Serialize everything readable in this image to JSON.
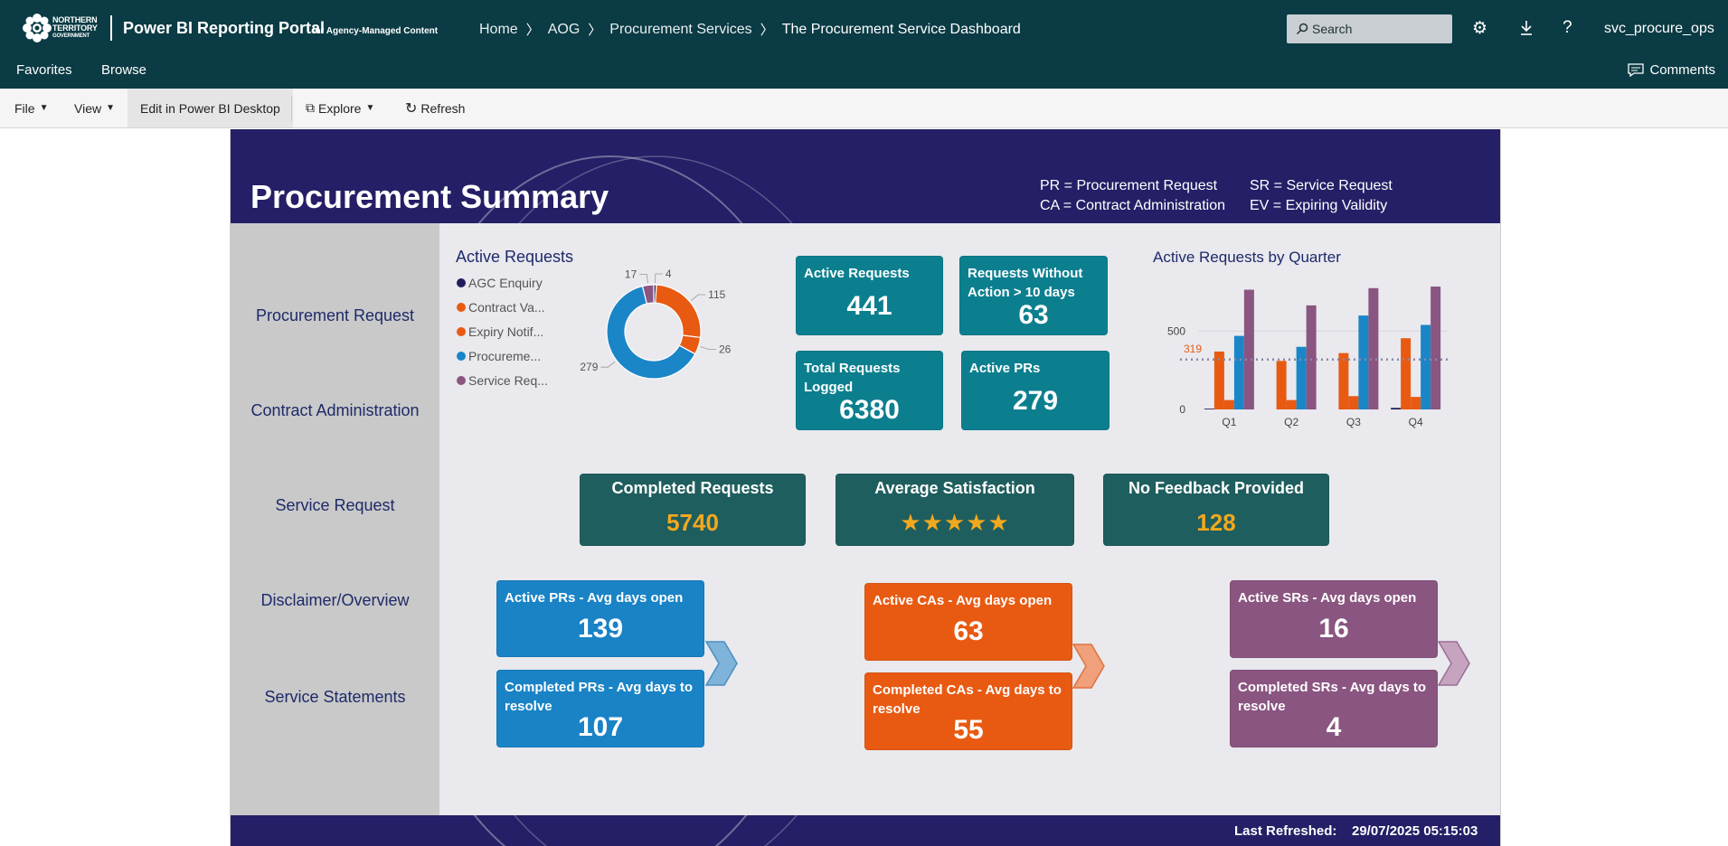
{
  "header": {
    "logo_text": [
      "NORTHERN",
      "TERRITORY",
      "GOVERNMENT"
    ],
    "portal_title": "Power BI Reporting Portal",
    "portal_subtitle": "for Agency-Managed Content",
    "breadcrumb": [
      "Home",
      "AOG",
      "Procurement Services",
      "The Procurement Service Dashboard"
    ],
    "search_placeholder": "Search",
    "username": "svc_procure_ops"
  },
  "nav": {
    "favorites": "Favorites",
    "browse": "Browse",
    "comments": "Comments"
  },
  "toolbar": {
    "file": "File",
    "view": "View",
    "edit": "Edit in Power BI Desktop",
    "explore": "Explore",
    "refresh": "Refresh"
  },
  "report": {
    "title": "Procurement Summary",
    "legend": {
      "pr": "PR = Procurement Request",
      "ca": "CA = Contract Administration",
      "sr": "SR = Service Request",
      "ev": "EV = Expiring Validity"
    },
    "leftnav": [
      "Procurement Request",
      "Contract Administration",
      "Service Request",
      "Disclaimer/Overview",
      "Service Statements"
    ],
    "donut_title": "Active Requests",
    "donut_legend": [
      "AGC Enquiry",
      "Contract Va...",
      "Expiry Notif...",
      "Procureme...",
      "Service Req..."
    ],
    "bar_title": "Active Requests by Quarter",
    "kpis": {
      "active_requests": {
        "label": "Active Requests",
        "value": "441"
      },
      "without_action": {
        "label": "Requests Without Action > 10 days",
        "value": "63"
      },
      "total_logged": {
        "label": "Total Requests Logged",
        "value": "6380"
      },
      "active_prs": {
        "label": "Active PRs",
        "value": "279"
      }
    },
    "summary": {
      "completed": {
        "label": "Completed Requests",
        "value": "5740"
      },
      "satisfaction": {
        "label": "Average Satisfaction",
        "value": "★★★★★",
        "rating": 5
      },
      "no_feedback": {
        "label": "No Feedback Provided",
        "value": "128"
      }
    },
    "pr_cards": {
      "open": {
        "label": "Active PRs - Avg days open",
        "value": "139"
      },
      "resolve": {
        "label": "Completed PRs - Avg days to resolve",
        "value": "107"
      }
    },
    "ca_cards": {
      "open": {
        "label": "Active CAs - Avg days open",
        "value": "63"
      },
      "resolve": {
        "label": "Completed CAs - Avg days to resolve",
        "value": "55"
      }
    },
    "sr_cards": {
      "open": {
        "label": "Active SRs - Avg days open",
        "value": "16"
      },
      "resolve": {
        "label": "Completed SRs - Avg days to resolve",
        "value": "4"
      }
    },
    "footer": {
      "label": "Last Refreshed:",
      "value": "29/07/2025 05:15:03"
    }
  },
  "colors": {
    "agc": "#1f1f5c",
    "contract": "#e85a12",
    "expiry": "#e85a12",
    "procurement": "#1a86c8",
    "service": "#8a5580"
  },
  "chart_data": [
    {
      "type": "pie",
      "title": "Active Requests",
      "categories": [
        "AGC Enquiry",
        "Contract Va...",
        "Expiry Notif...",
        "Procureme...",
        "Service Req..."
      ],
      "values": [
        4,
        115,
        26,
        279,
        17
      ],
      "data_labels": [
        "4",
        "115",
        "26",
        "279",
        "17"
      ],
      "colors": [
        "#1f1f5c",
        "#e85a12",
        "#e85a12",
        "#1a86c8",
        "#8a5580"
      ],
      "hole": true
    },
    {
      "type": "bar",
      "title": "Active Requests by Quarter",
      "categories": [
        "Q1",
        "Q2",
        "Q3",
        "Q4"
      ],
      "series": [
        {
          "values": [
            5,
            0,
            0,
            10
          ],
          "color": "#1f1f5c"
        },
        {
          "values": [
            370,
            310,
            360,
            455
          ],
          "color": "#e85a12"
        },
        {
          "values": [
            60,
            60,
            85,
            80
          ],
          "color": "#e85a12"
        },
        {
          "values": [
            470,
            400,
            600,
            540
          ],
          "color": "#1a86c8"
        },
        {
          "values": [
            765,
            665,
            775,
            785
          ],
          "color": "#8a5580"
        }
      ],
      "yticks": [
        0,
        500
      ],
      "ylim": [
        0,
        820
      ],
      "reference_line": {
        "value": 319,
        "label": "319"
      }
    }
  ]
}
